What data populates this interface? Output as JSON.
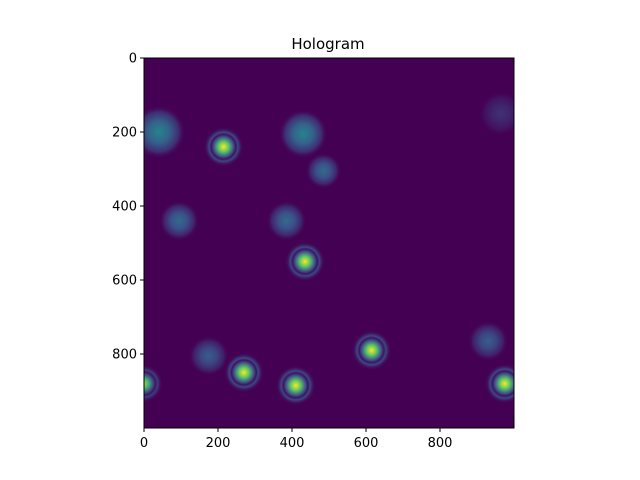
{
  "chart_data": {
    "type": "heatmap",
    "title": "Hologram",
    "xlabel": "",
    "ylabel": "",
    "xlim": [
      0,
      1000
    ],
    "ylim": [
      1000,
      0
    ],
    "x_ticks": [
      0,
      200,
      400,
      600,
      800
    ],
    "y_ticks": [
      0,
      200,
      400,
      600,
      800
    ],
    "colormap": "viridis",
    "background_value": 0.02,
    "grid": false,
    "blobs": [
      {
        "x": 215,
        "y": 240,
        "intensity": 1.0,
        "radius": 30,
        "rings": true
      },
      {
        "x": 435,
        "y": 550,
        "intensity": 1.0,
        "radius": 30,
        "rings": true
      },
      {
        "x": 270,
        "y": 850,
        "intensity": 1.0,
        "radius": 30,
        "rings": true
      },
      {
        "x": 410,
        "y": 885,
        "intensity": 1.0,
        "radius": 30,
        "rings": true
      },
      {
        "x": 615,
        "y": 790,
        "intensity": 1.0,
        "radius": 30,
        "rings": true
      },
      {
        "x": 975,
        "y": 880,
        "intensity": 1.0,
        "radius": 30,
        "rings": true
      },
      {
        "x": 0,
        "y": 880,
        "intensity": 0.85,
        "radius": 28,
        "rings": true
      },
      {
        "x": 40,
        "y": 200,
        "intensity": 0.45,
        "radius": 60,
        "rings": false
      },
      {
        "x": 430,
        "y": 205,
        "intensity": 0.45,
        "radius": 55,
        "rings": false
      },
      {
        "x": 485,
        "y": 305,
        "intensity": 0.35,
        "radius": 40,
        "rings": false
      },
      {
        "x": 95,
        "y": 440,
        "intensity": 0.35,
        "radius": 45,
        "rings": false
      },
      {
        "x": 385,
        "y": 440,
        "intensity": 0.35,
        "radius": 45,
        "rings": false
      },
      {
        "x": 175,
        "y": 805,
        "intensity": 0.3,
        "radius": 45,
        "rings": false
      },
      {
        "x": 930,
        "y": 765,
        "intensity": 0.3,
        "radius": 45,
        "rings": false
      },
      {
        "x": 965,
        "y": 150,
        "intensity": 0.15,
        "radius": 50,
        "rings": false
      }
    ]
  }
}
